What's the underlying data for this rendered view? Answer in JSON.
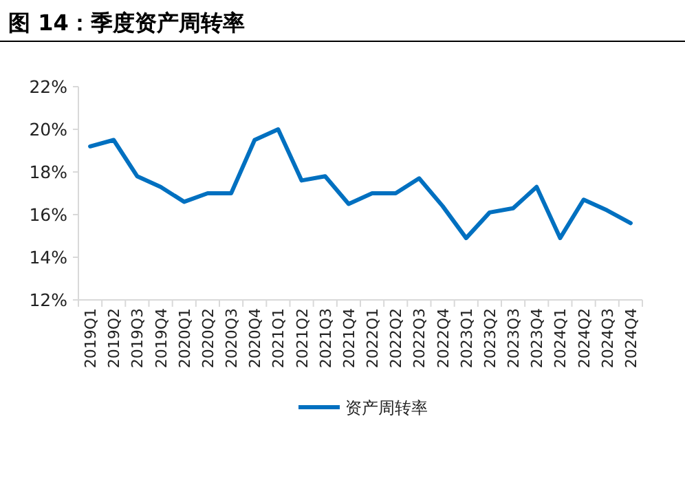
{
  "chart_data": {
    "type": "line",
    "title": "图 14：季度资产周转率",
    "categories": [
      "2019Q1",
      "2019Q2",
      "2019Q3",
      "2019Q4",
      "2020Q1",
      "2020Q2",
      "2020Q3",
      "2020Q4",
      "2021Q1",
      "2021Q2",
      "2021Q3",
      "2021Q4",
      "2022Q1",
      "2022Q2",
      "2022Q3",
      "2022Q4",
      "2023Q1",
      "2023Q2",
      "2023Q3",
      "2023Q4",
      "2024Q1",
      "2024Q2",
      "2024Q3",
      "2024Q4"
    ],
    "series": [
      {
        "name": "资产周转率",
        "color": "#0070c0",
        "values": [
          19.2,
          19.5,
          17.8,
          17.3,
          16.6,
          17.0,
          17.0,
          19.5,
          20.0,
          17.6,
          17.8,
          16.5,
          17.0,
          17.0,
          17.7,
          16.4,
          14.9,
          16.1,
          16.3,
          17.3,
          14.9,
          16.7,
          16.2,
          15.6
        ]
      }
    ],
    "ylim": [
      12,
      22
    ],
    "yticks": [
      {
        "value": 12,
        "label": "12%"
      },
      {
        "value": 14,
        "label": "14%"
      },
      {
        "value": 16,
        "label": "16%"
      },
      {
        "value": 18,
        "label": "18%"
      },
      {
        "value": 20,
        "label": "20%"
      },
      {
        "value": 22,
        "label": "22%"
      }
    ],
    "grid": false,
    "legend": "bottom",
    "marker": "none",
    "line_style": "solid"
  }
}
